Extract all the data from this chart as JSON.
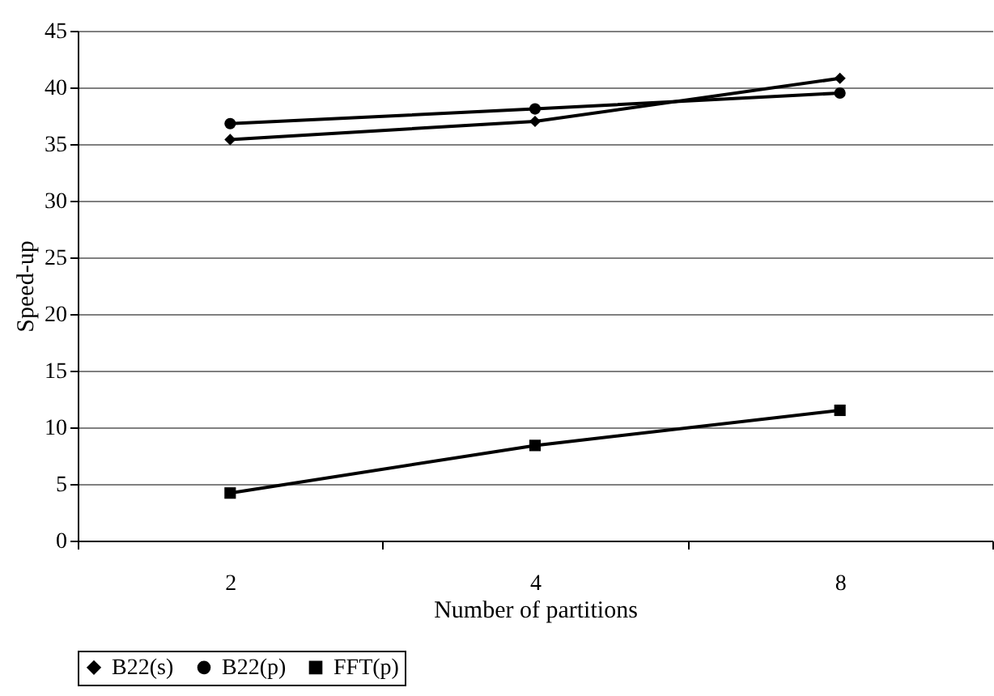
{
  "chart_data": {
    "type": "line",
    "xlabel": "Number of partitions",
    "ylabel": "Speed-up",
    "categories": [
      "2",
      "4",
      "8"
    ],
    "series": [
      {
        "name": "B22(s)",
        "color": "#000000",
        "marker": "diamond",
        "values": [
          35.4,
          37.0,
          40.8
        ]
      },
      {
        "name": "B22(p)",
        "color": "#000000",
        "marker": "circle",
        "values": [
          36.8,
          38.1,
          39.5
        ]
      },
      {
        "name": "FFT(p)",
        "color": "#000000",
        "marker": "square",
        "values": [
          4.2,
          8.4,
          11.5
        ]
      }
    ],
    "ylim": [
      0,
      45
    ],
    "yticks": [
      0,
      5,
      10,
      15,
      20,
      25,
      30,
      35,
      40,
      45
    ],
    "grid": "y",
    "legend": "bottom",
    "line_style": "solid"
  }
}
